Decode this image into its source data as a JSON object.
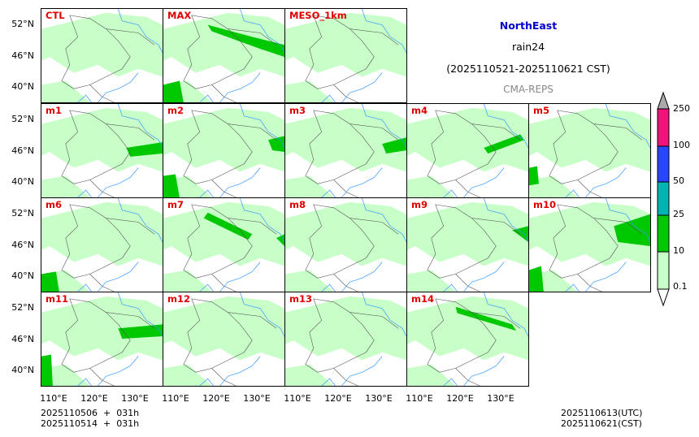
{
  "title": {
    "region": "NorthEast",
    "variable": "rain24",
    "period": "(2025110521-2025110621 CST)",
    "source": "CMA-REPS"
  },
  "panels": [
    {
      "label": "CTL"
    },
    {
      "label": "MAX"
    },
    {
      "label": "MESO_1km"
    },
    {
      "label": "m1"
    },
    {
      "label": "m2"
    },
    {
      "label": "m3"
    },
    {
      "label": "m4"
    },
    {
      "label": "m5"
    },
    {
      "label": "m6"
    },
    {
      "label": "m7"
    },
    {
      "label": "m8"
    },
    {
      "label": "m9"
    },
    {
      "label": "m10"
    },
    {
      "label": "m11"
    },
    {
      "label": "m12"
    },
    {
      "label": "m13"
    },
    {
      "label": "m14"
    }
  ],
  "axes": {
    "lat_labels": [
      "52°N",
      "46°N",
      "40°N"
    ],
    "lon_labels": [
      "110°E",
      "120°E",
      "130°E"
    ]
  },
  "colorbar": {
    "levels": [
      "0.1",
      "10",
      "25",
      "50",
      "100",
      "250"
    ],
    "colors": [
      "#c8ffc8",
      "#00c800",
      "#00b4b4",
      "#2846ff",
      "#f0147a",
      "#aaaaaa"
    ]
  },
  "footer": {
    "init1": "2025110506  +  031h",
    "init2": "2025110514  +  031h",
    "valid_utc": "2025110613(UTC)",
    "valid_cst": "2025110621(CST)"
  },
  "colors": {
    "title_blue": "#0000cc",
    "label_red": "#e00000",
    "source_gray": "#888888",
    "light_rain": "#c8ffc8",
    "heavy_rain": "#00c800"
  }
}
